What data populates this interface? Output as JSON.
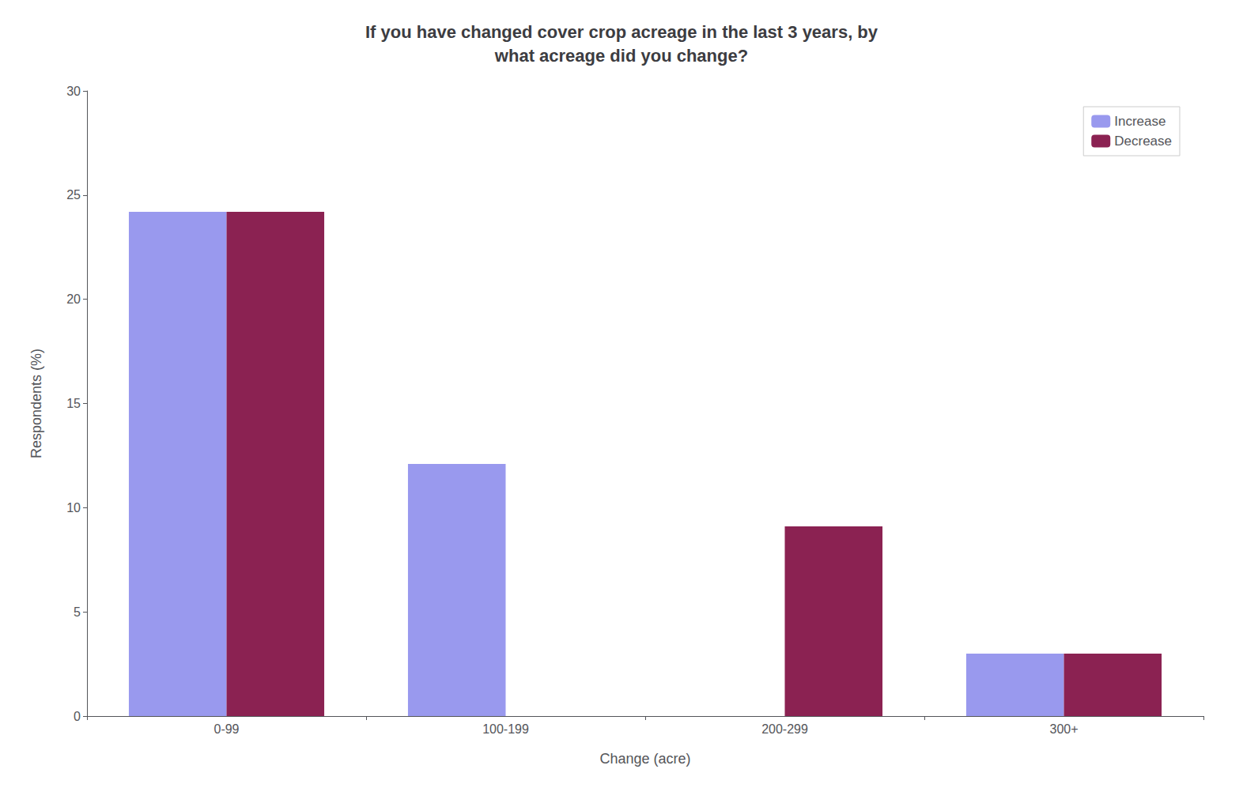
{
  "chart_data": {
    "type": "bar",
    "title": "If you have changed cover crop acreage in the last 3 years, by\nwhat acreage did you change?",
    "xlabel": "Change (acre)",
    "ylabel": "Respondents (%)",
    "categories": [
      "0-99",
      "100-199",
      "200-299",
      "300+"
    ],
    "series": [
      {
        "name": "Increase",
        "color": "#9999ee",
        "values": [
          24.2,
          12.1,
          0.0,
          3.0
        ]
      },
      {
        "name": "Decrease",
        "color": "#8B2252",
        "values": [
          24.2,
          0.0,
          9.1,
          3.0
        ]
      }
    ],
    "ylim": [
      0,
      30
    ],
    "yticks": [
      0,
      5,
      10,
      15,
      20,
      25,
      30
    ],
    "grid": false,
    "legend": "upper right"
  }
}
